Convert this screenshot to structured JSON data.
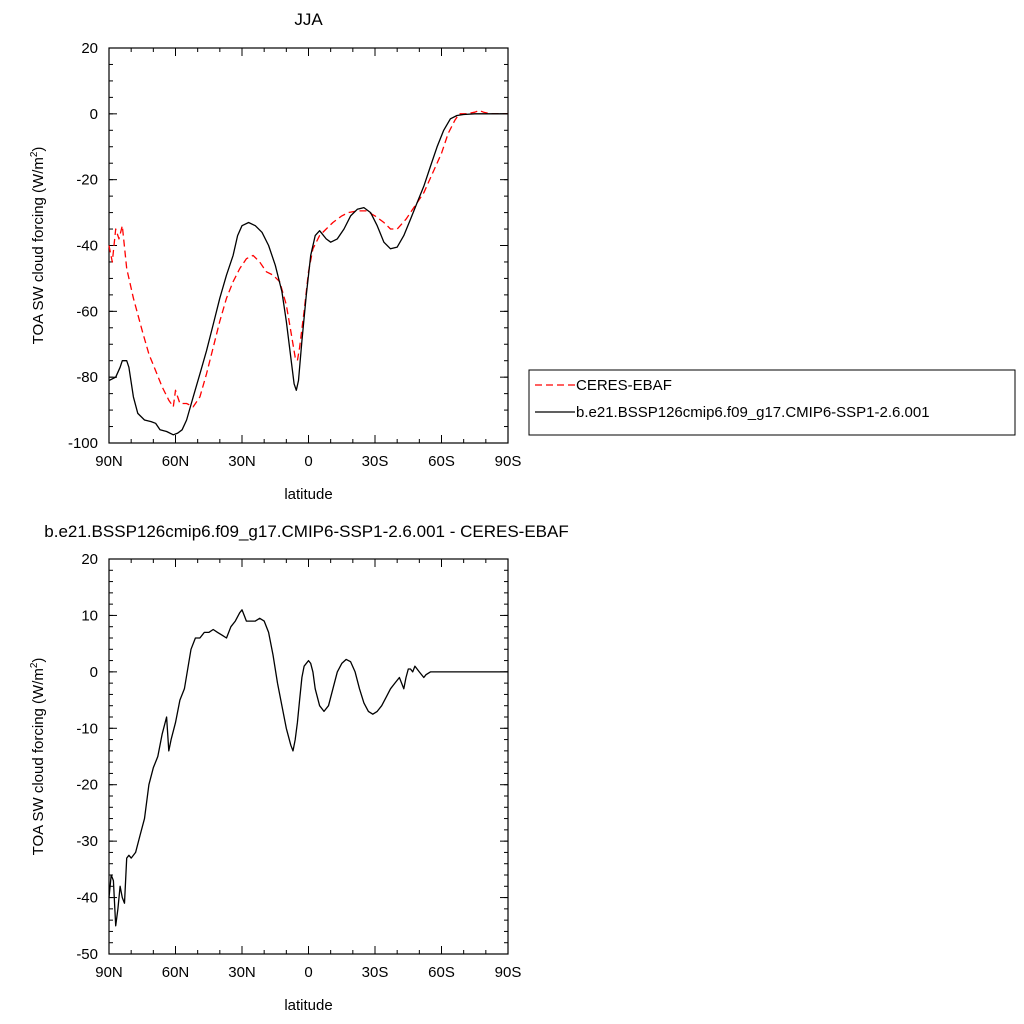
{
  "chart_data": [
    {
      "type": "line",
      "title": "JJA",
      "xlabel": "latitude",
      "ylabel": "TOA SW cloud forcing (W/m",
      "ylabel_sup": "2",
      "ylabel_close": ")",
      "xlim": [
        90,
        -90
      ],
      "ylim": [
        -100,
        20
      ],
      "x_ticks": [
        {
          "value": 90,
          "label": "90N"
        },
        {
          "value": 60,
          "label": "60N"
        },
        {
          "value": 30,
          "label": "30N"
        },
        {
          "value": 0,
          "label": "0"
        },
        {
          "value": -30,
          "label": "30S"
        },
        {
          "value": -60,
          "label": "60S"
        },
        {
          "value": -90,
          "label": "90S"
        }
      ],
      "y_ticks": [
        {
          "value": 20,
          "label": "20"
        },
        {
          "value": 0,
          "label": "0"
        },
        {
          "value": -20,
          "label": "-20"
        },
        {
          "value": -40,
          "label": "-40"
        },
        {
          "value": -60,
          "label": "-60"
        },
        {
          "value": -80,
          "label": "-80"
        },
        {
          "value": -100,
          "label": "-100"
        }
      ],
      "legend": {
        "position": "right",
        "entries": [
          "CERES-EBAF",
          "b.e21.BSSP126cmip6.f09_g17.CMIP6-SSP1-2.6.001"
        ]
      },
      "series": [
        {
          "name": "CERES-EBAF",
          "color": "#ff0000",
          "dash": "dashed",
          "points": [
            [
              90,
              -40
            ],
            [
              88.5,
              -45
            ],
            [
              87,
              -35
            ],
            [
              85.5,
              -38
            ],
            [
              84,
              -34
            ],
            [
              82,
              -47
            ],
            [
              79,
              -56
            ],
            [
              75,
              -66
            ],
            [
              72,
              -73
            ],
            [
              69,
              -78
            ],
            [
              66,
              -83
            ],
            [
              63,
              -87
            ],
            [
              61,
              -89
            ],
            [
              60,
              -84
            ],
            [
              58,
              -88
            ],
            [
              55,
              -88
            ],
            [
              52,
              -89
            ],
            [
              49,
              -86
            ],
            [
              46,
              -79
            ],
            [
              43,
              -71
            ],
            [
              40,
              -63
            ],
            [
              37,
              -56
            ],
            [
              34,
              -51
            ],
            [
              31,
              -47
            ],
            [
              28,
              -44
            ],
            [
              25,
              -43
            ],
            [
              22,
              -45
            ],
            [
              19,
              -48
            ],
            [
              16,
              -49
            ],
            [
              13,
              -51
            ],
            [
              10,
              -58
            ],
            [
              8,
              -66
            ],
            [
              6,
              -74
            ],
            [
              5,
              -75
            ],
            [
              4,
              -71
            ],
            [
              2,
              -60
            ],
            [
              0,
              -48
            ],
            [
              -2,
              -41
            ],
            [
              -5,
              -37
            ],
            [
              -8,
              -35
            ],
            [
              -11,
              -33
            ],
            [
              -15,
              -31
            ],
            [
              -18,
              -30
            ],
            [
              -22,
              -29.5
            ],
            [
              -26,
              -29.5
            ],
            [
              -30,
              -31
            ],
            [
              -34,
              -33
            ],
            [
              -37,
              -35
            ],
            [
              -40,
              -35
            ],
            [
              -44,
              -32
            ],
            [
              -48,
              -28
            ],
            [
              -52,
              -24
            ],
            [
              -56,
              -18
            ],
            [
              -60,
              -12
            ],
            [
              -63,
              -6
            ],
            [
              -66,
              -2
            ],
            [
              -68,
              0
            ],
            [
              -71,
              0
            ],
            [
              -75,
              0.5
            ],
            [
              -77,
              1
            ],
            [
              -79,
              0.5
            ],
            [
              -82,
              0
            ],
            [
              -90,
              0
            ]
          ]
        },
        {
          "name": "b.e21.BSSP126cmip6.f09_g17.CMIP6-SSP1-2.6.001",
          "color": "#000000",
          "dash": "solid",
          "points": [
            [
              90,
              -81
            ],
            [
              87,
              -80
            ],
            [
              85,
              -77
            ],
            [
              84,
              -75
            ],
            [
              82,
              -75
            ],
            [
              81,
              -77
            ],
            [
              79,
              -86
            ],
            [
              77,
              -91
            ],
            [
              74,
              -93
            ],
            [
              71,
              -93.5
            ],
            [
              69,
              -94
            ],
            [
              67,
              -96
            ],
            [
              64,
              -96.5
            ],
            [
              61,
              -97.5
            ],
            [
              59,
              -97
            ],
            [
              57,
              -96
            ],
            [
              55,
              -93
            ],
            [
              52,
              -86
            ],
            [
              49,
              -79
            ],
            [
              46,
              -72
            ],
            [
              43,
              -64
            ],
            [
              40,
              -56
            ],
            [
              37,
              -49
            ],
            [
              34,
              -43
            ],
            [
              32,
              -37
            ],
            [
              30,
              -34
            ],
            [
              27,
              -33
            ],
            [
              24,
              -34
            ],
            [
              21,
              -36
            ],
            [
              18,
              -40
            ],
            [
              15,
              -46
            ],
            [
              12,
              -54
            ],
            [
              10,
              -63
            ],
            [
              8,
              -74
            ],
            [
              6.5,
              -82
            ],
            [
              5.5,
              -84
            ],
            [
              4.5,
              -81
            ],
            [
              3,
              -69
            ],
            [
              1,
              -55
            ],
            [
              -1,
              -43
            ],
            [
              -3,
              -37
            ],
            [
              -5,
              -35.5
            ],
            [
              -8,
              -38
            ],
            [
              -10,
              -39
            ],
            [
              -13,
              -38
            ],
            [
              -16,
              -35
            ],
            [
              -19,
              -31
            ],
            [
              -22,
              -29
            ],
            [
              -25,
              -28.5
            ],
            [
              -28,
              -30
            ],
            [
              -31,
              -34
            ],
            [
              -34,
              -39
            ],
            [
              -37,
              -41
            ],
            [
              -40,
              -40.5
            ],
            [
              -43,
              -37
            ],
            [
              -46,
              -32
            ],
            [
              -49,
              -27
            ],
            [
              -52,
              -22
            ],
            [
              -55,
              -16
            ],
            [
              -58,
              -10
            ],
            [
              -61,
              -5
            ],
            [
              -64,
              -1.5
            ],
            [
              -67,
              -0.5
            ],
            [
              -70,
              -0.2
            ],
            [
              -75,
              0
            ],
            [
              -90,
              0
            ]
          ]
        }
      ]
    },
    {
      "type": "line",
      "title": "b.e21.BSSP126cmip6.f09_g17.CMIP6-SSP1-2.6.001 - CERES-EBAF",
      "xlabel": "latitude",
      "ylabel": "TOA SW cloud forcing (W/m",
      "ylabel_sup": "2",
      "ylabel_close": ")",
      "xlim": [
        90,
        -90
      ],
      "ylim": [
        -50,
        20
      ],
      "x_ticks": [
        {
          "value": 90,
          "label": "90N"
        },
        {
          "value": 60,
          "label": "60N"
        },
        {
          "value": 30,
          "label": "30N"
        },
        {
          "value": 0,
          "label": "0"
        },
        {
          "value": -30,
          "label": "30S"
        },
        {
          "value": -60,
          "label": "60S"
        },
        {
          "value": -90,
          "label": "90S"
        }
      ],
      "y_ticks": [
        {
          "value": 20,
          "label": "20"
        },
        {
          "value": 10,
          "label": "10"
        },
        {
          "value": 0,
          "label": "0"
        },
        {
          "value": -10,
          "label": "-10"
        },
        {
          "value": -20,
          "label": "-20"
        },
        {
          "value": -30,
          "label": "-30"
        },
        {
          "value": -40,
          "label": "-40"
        },
        {
          "value": -50,
          "label": "-50"
        }
      ],
      "series": [
        {
          "color": "#000000",
          "dash": "solid",
          "points": [
            [
              90,
              -40
            ],
            [
              89,
              -36
            ],
            [
              88,
              -37
            ],
            [
              87,
              -45
            ],
            [
              86,
              -42
            ],
            [
              85,
              -38
            ],
            [
              84,
              -40
            ],
            [
              83,
              -41
            ],
            [
              82,
              -33
            ],
            [
              81,
              -32.5
            ],
            [
              80,
              -33
            ],
            [
              78,
              -32
            ],
            [
              76,
              -29
            ],
            [
              74,
              -26
            ],
            [
              72,
              -20
            ],
            [
              70,
              -17
            ],
            [
              68,
              -15
            ],
            [
              66,
              -11
            ],
            [
              64,
              -8
            ],
            [
              63,
              -14
            ],
            [
              62,
              -12
            ],
            [
              60,
              -9
            ],
            [
              58,
              -5
            ],
            [
              56,
              -3
            ],
            [
              53,
              4
            ],
            [
              51,
              6
            ],
            [
              49,
              6
            ],
            [
              47,
              7
            ],
            [
              45,
              7
            ],
            [
              43,
              7.5
            ],
            [
              41,
              7
            ],
            [
              39,
              6.5
            ],
            [
              37,
              6
            ],
            [
              35,
              8
            ],
            [
              33,
              9
            ],
            [
              31,
              10.5
            ],
            [
              30,
              11
            ],
            [
              29,
              10
            ],
            [
              28,
              9
            ],
            [
              26,
              9
            ],
            [
              24,
              9
            ],
            [
              22,
              9.5
            ],
            [
              20,
              9
            ],
            [
              18,
              7
            ],
            [
              16,
              3
            ],
            [
              14,
              -2
            ],
            [
              12,
              -6
            ],
            [
              10,
              -10
            ],
            [
              8,
              -13
            ],
            [
              7,
              -14
            ],
            [
              6,
              -12
            ],
            [
              5,
              -9
            ],
            [
              4,
              -5
            ],
            [
              3,
              -1
            ],
            [
              2,
              1
            ],
            [
              0,
              2
            ],
            [
              -1,
              1.5
            ],
            [
              -2,
              0
            ],
            [
              -3,
              -3
            ],
            [
              -5,
              -6
            ],
            [
              -7,
              -7
            ],
            [
              -9,
              -6
            ],
            [
              -11,
              -3
            ],
            [
              -13,
              0
            ],
            [
              -15,
              1.5
            ],
            [
              -17,
              2.2
            ],
            [
              -19,
              1.8
            ],
            [
              -21,
              0
            ],
            [
              -23,
              -3
            ],
            [
              -25,
              -5.5
            ],
            [
              -27,
              -7
            ],
            [
              -29,
              -7.5
            ],
            [
              -31,
              -7
            ],
            [
              -33,
              -6
            ],
            [
              -35,
              -4.5
            ],
            [
              -37,
              -3
            ],
            [
              -39,
              -2
            ],
            [
              -41,
              -1
            ],
            [
              -42,
              -2
            ],
            [
              -43,
              -3
            ],
            [
              -44,
              -1
            ],
            [
              -45,
              0.5
            ],
            [
              -46,
              0.5
            ],
            [
              -47,
              0
            ],
            [
              -48,
              1
            ],
            [
              -49,
              0.5
            ],
            [
              -50,
              0
            ],
            [
              -52,
              -1
            ],
            [
              -53,
              -0.5
            ],
            [
              -55,
              0
            ],
            [
              -60,
              0
            ],
            [
              -70,
              0
            ],
            [
              -90,
              0
            ]
          ]
        }
      ]
    }
  ]
}
